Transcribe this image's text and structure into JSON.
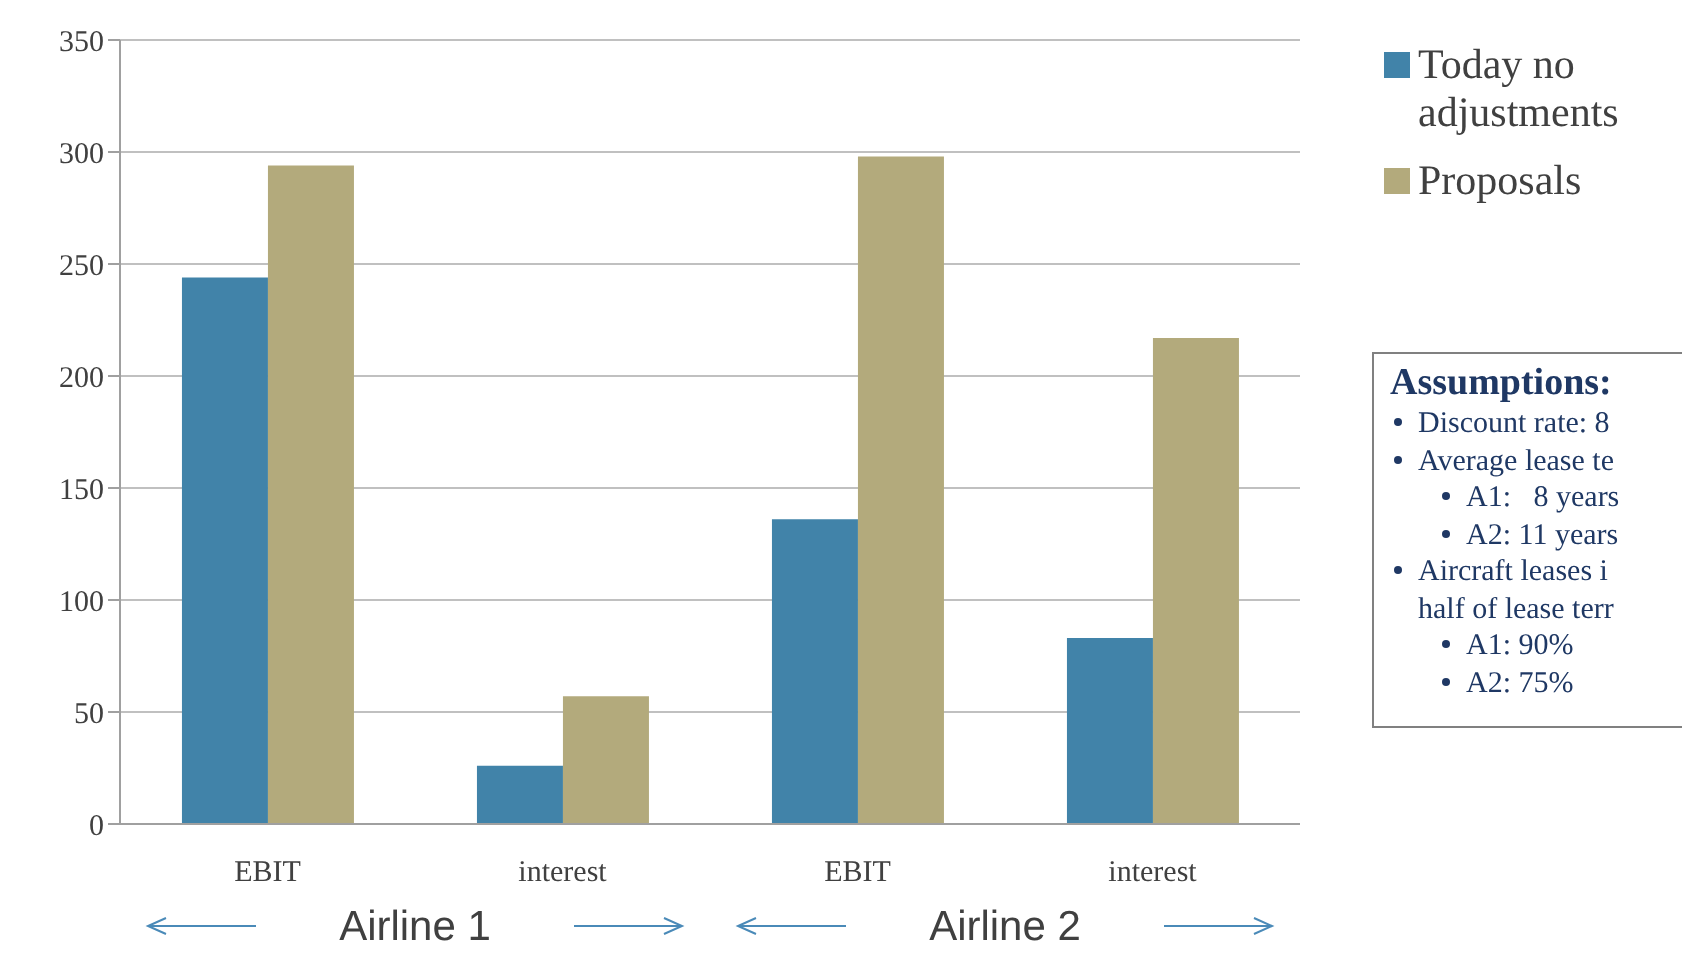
{
  "chart_data": {
    "type": "bar",
    "categories": [
      "EBIT",
      "interest",
      "EBIT",
      "interest"
    ],
    "series": [
      {
        "name": "Today no adjustments",
        "color": "#4183a9",
        "values": [
          244,
          26,
          136,
          83
        ]
      },
      {
        "name": "Proposals",
        "color": "#b3aa7c",
        "values": [
          294,
          57,
          298,
          217
        ]
      }
    ],
    "ylim": [
      0,
      350
    ],
    "yticks": [
      0,
      50,
      100,
      150,
      200,
      250,
      300,
      350
    ],
    "grid": "y",
    "legend": "top right",
    "annotations": [
      "Airline 1",
      "Airline 2",
      "Assumptions:",
      "Discount rate: 8",
      "Average lease te",
      "A1:   8 years",
      "A2: 11 years",
      "Aircraft leases i",
      "half of lease terr",
      "A1: 90%",
      "A2: 75%"
    ]
  }
}
